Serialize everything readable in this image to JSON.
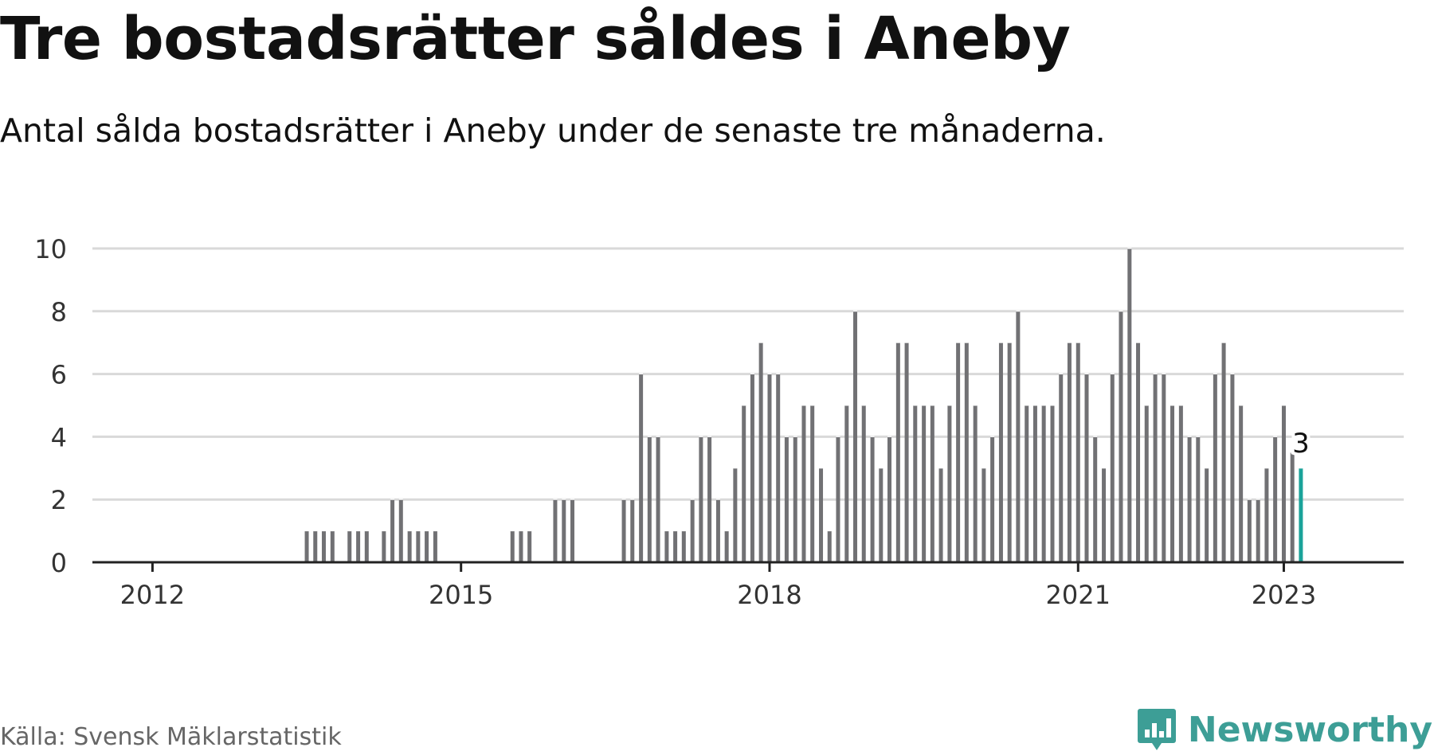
{
  "title": "Tre bostadsrätter såldes i Aneby",
  "subtitle": "Antal sålda bostadsrätter i Aneby under de senaste tre månaderna.",
  "source": "Källa: Svensk Mäklarstatistik",
  "brand": {
    "name": "Newsworthy",
    "logo_icon": "bar-chart-speech-bubble-icon"
  },
  "colors": {
    "bar": "#717174",
    "highlight": "#1aa39a",
    "grid": "#d9d9d9",
    "axis": "#222222",
    "brand": "#3d9e96",
    "text": "#111111"
  },
  "chart_data": {
    "type": "bar",
    "title": "Tre bostadsrätter såldes i Aneby",
    "xlabel": "",
    "ylabel": "",
    "ylim": [
      0,
      10
    ],
    "yticks": [
      0,
      2,
      4,
      6,
      8,
      10
    ],
    "xlim": [
      2011.083,
      2023.833
    ],
    "xticks": [
      {
        "value": 2011.667,
        "label": "2012"
      },
      {
        "value": 2014.667,
        "label": "2015"
      },
      {
        "value": 2017.667,
        "label": "2018"
      },
      {
        "value": 2020.667,
        "label": "2021"
      },
      {
        "value": 2022.667,
        "label": "2023"
      }
    ],
    "grid": true,
    "series": [
      {
        "name": "Antal sålda bostadsrätter",
        "points": [
          {
            "x": 2013.167,
            "y": 1
          },
          {
            "x": 2013.25,
            "y": 1
          },
          {
            "x": 2013.333,
            "y": 1
          },
          {
            "x": 2013.417,
            "y": 1
          },
          {
            "x": 2013.583,
            "y": 1
          },
          {
            "x": 2013.667,
            "y": 1
          },
          {
            "x": 2013.75,
            "y": 1
          },
          {
            "x": 2013.917,
            "y": 1
          },
          {
            "x": 2014.0,
            "y": 2
          },
          {
            "x": 2014.083,
            "y": 2
          },
          {
            "x": 2014.167,
            "y": 1
          },
          {
            "x": 2014.25,
            "y": 1
          },
          {
            "x": 2014.333,
            "y": 1
          },
          {
            "x": 2014.417,
            "y": 1
          },
          {
            "x": 2015.167,
            "y": 1
          },
          {
            "x": 2015.25,
            "y": 1
          },
          {
            "x": 2015.333,
            "y": 1
          },
          {
            "x": 2015.583,
            "y": 2
          },
          {
            "x": 2015.667,
            "y": 2
          },
          {
            "x": 2015.75,
            "y": 2
          },
          {
            "x": 2016.25,
            "y": 2
          },
          {
            "x": 2016.333,
            "y": 2
          },
          {
            "x": 2016.417,
            "y": 6
          },
          {
            "x": 2016.5,
            "y": 4
          },
          {
            "x": 2016.583,
            "y": 4
          },
          {
            "x": 2016.667,
            "y": 1
          },
          {
            "x": 2016.75,
            "y": 1
          },
          {
            "x": 2016.833,
            "y": 1
          },
          {
            "x": 2016.917,
            "y": 2
          },
          {
            "x": 2017.0,
            "y": 4
          },
          {
            "x": 2017.083,
            "y": 4
          },
          {
            "x": 2017.167,
            "y": 2
          },
          {
            "x": 2017.25,
            "y": 1
          },
          {
            "x": 2017.333,
            "y": 3
          },
          {
            "x": 2017.417,
            "y": 5
          },
          {
            "x": 2017.5,
            "y": 6
          },
          {
            "x": 2017.583,
            "y": 7
          },
          {
            "x": 2017.667,
            "y": 6
          },
          {
            "x": 2017.75,
            "y": 6
          },
          {
            "x": 2017.833,
            "y": 4
          },
          {
            "x": 2017.917,
            "y": 4
          },
          {
            "x": 2018.0,
            "y": 5
          },
          {
            "x": 2018.083,
            "y": 5
          },
          {
            "x": 2018.167,
            "y": 3
          },
          {
            "x": 2018.25,
            "y": 1
          },
          {
            "x": 2018.333,
            "y": 4
          },
          {
            "x": 2018.417,
            "y": 5
          },
          {
            "x": 2018.5,
            "y": 8
          },
          {
            "x": 2018.583,
            "y": 5
          },
          {
            "x": 2018.667,
            "y": 4
          },
          {
            "x": 2018.75,
            "y": 3
          },
          {
            "x": 2018.833,
            "y": 4
          },
          {
            "x": 2018.917,
            "y": 7
          },
          {
            "x": 2019.0,
            "y": 7
          },
          {
            "x": 2019.083,
            "y": 5
          },
          {
            "x": 2019.167,
            "y": 5
          },
          {
            "x": 2019.25,
            "y": 5
          },
          {
            "x": 2019.333,
            "y": 3
          },
          {
            "x": 2019.417,
            "y": 5
          },
          {
            "x": 2019.5,
            "y": 7
          },
          {
            "x": 2019.583,
            "y": 7
          },
          {
            "x": 2019.667,
            "y": 5
          },
          {
            "x": 2019.75,
            "y": 3
          },
          {
            "x": 2019.833,
            "y": 4
          },
          {
            "x": 2019.917,
            "y": 7
          },
          {
            "x": 2020.0,
            "y": 7
          },
          {
            "x": 2020.083,
            "y": 8
          },
          {
            "x": 2020.167,
            "y": 5
          },
          {
            "x": 2020.25,
            "y": 5
          },
          {
            "x": 2020.333,
            "y": 5
          },
          {
            "x": 2020.417,
            "y": 5
          },
          {
            "x": 2020.5,
            "y": 6
          },
          {
            "x": 2020.583,
            "y": 7
          },
          {
            "x": 2020.667,
            "y": 7
          },
          {
            "x": 2020.75,
            "y": 6
          },
          {
            "x": 2020.833,
            "y": 4
          },
          {
            "x": 2020.917,
            "y": 3
          },
          {
            "x": 2021.0,
            "y": 6
          },
          {
            "x": 2021.083,
            "y": 8
          },
          {
            "x": 2021.167,
            "y": 10
          },
          {
            "x": 2021.25,
            "y": 7
          },
          {
            "x": 2021.333,
            "y": 5
          },
          {
            "x": 2021.417,
            "y": 6
          },
          {
            "x": 2021.5,
            "y": 6
          },
          {
            "x": 2021.583,
            "y": 5
          },
          {
            "x": 2021.667,
            "y": 5
          },
          {
            "x": 2021.75,
            "y": 4
          },
          {
            "x": 2021.833,
            "y": 4
          },
          {
            "x": 2021.917,
            "y": 3
          },
          {
            "x": 2022.0,
            "y": 6
          },
          {
            "x": 2022.083,
            "y": 7
          },
          {
            "x": 2022.167,
            "y": 6
          },
          {
            "x": 2022.25,
            "y": 5
          },
          {
            "x": 2022.333,
            "y": 2
          },
          {
            "x": 2022.417,
            "y": 2
          },
          {
            "x": 2022.5,
            "y": 3
          },
          {
            "x": 2022.583,
            "y": 4
          },
          {
            "x": 2022.667,
            "y": 5
          },
          {
            "x": 2022.75,
            "y": 3.5
          },
          {
            "x": 2022.833,
            "y": 3,
            "highlight": true
          }
        ]
      }
    ],
    "annotations": [
      {
        "x": 2022.833,
        "y": 3,
        "text": "3"
      }
    ]
  }
}
